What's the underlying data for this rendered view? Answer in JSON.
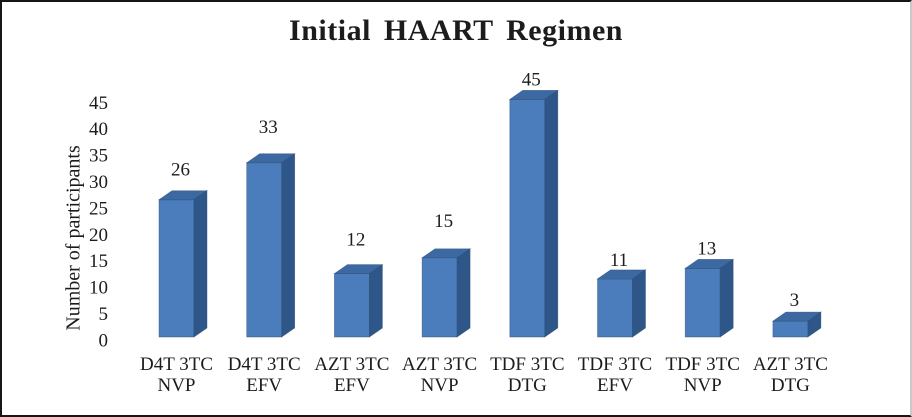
{
  "chart_data": {
    "type": "bar",
    "title": "Initial HAART Regimen",
    "ylabel": "Number of participants",
    "xlabel": "",
    "categories": [
      "D4T 3TC NVP",
      "D4T 3TC EFV",
      "AZT 3TC EFV",
      "AZT 3TC NVP",
      "TDF 3TC DTG",
      "TDF 3TC EFV",
      "TDF 3TC NVP",
      "AZT 3TC DTG"
    ],
    "values": [
      26,
      33,
      12,
      15,
      45,
      11,
      13,
      3
    ],
    "yticks": [
      0,
      5,
      10,
      15,
      20,
      25,
      30,
      35,
      40,
      45
    ],
    "ylim": [
      0,
      45
    ],
    "grid": false,
    "legend": false,
    "bar_style": "3d-box",
    "data_labels": "above-bars",
    "colors": {
      "bar_front": "#4b7dbc",
      "bar_top": "#3d69a3",
      "bar_side": "#2e5689",
      "bar_edge": "#27496f",
      "text": "#1c1c1c",
      "background": "#ffffff",
      "frame_border": "#161616"
    }
  }
}
